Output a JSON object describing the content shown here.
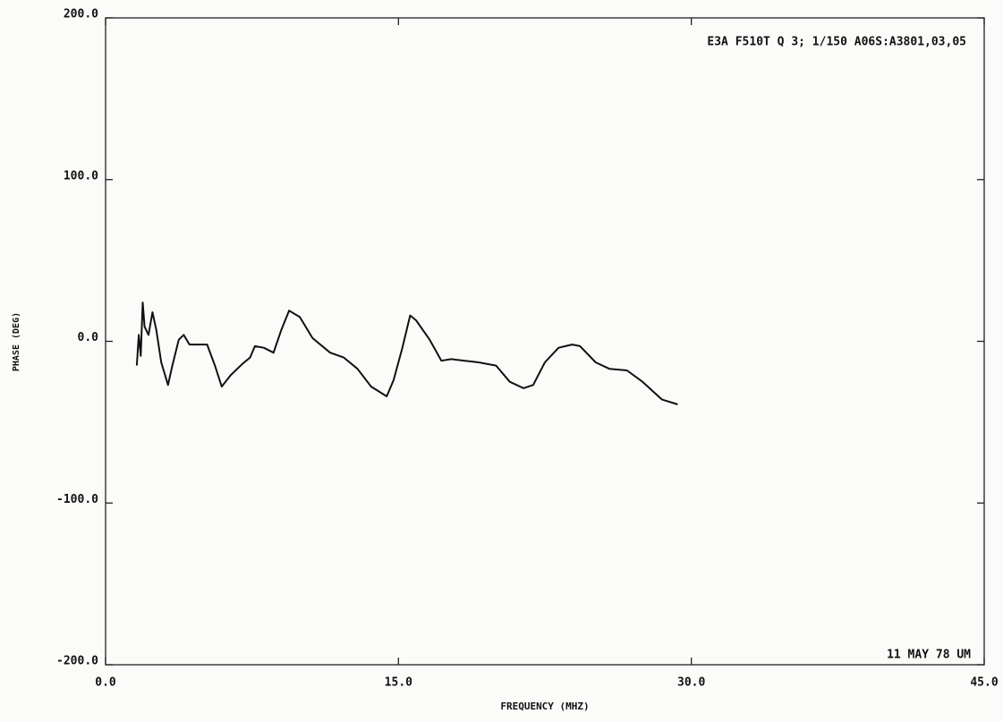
{
  "chart_data": {
    "type": "line",
    "title": "E3A F510T Q 3; 1/150 A06S:A3801,03,05",
    "annotation": "11 MAY 78 UM",
    "xlabel": "FREQUENCY (MHZ)",
    "ylabel": "PHASE (DEG)",
    "color": "#111111",
    "x": [
      1.6,
      1.7,
      1.8,
      1.9,
      2.0,
      2.2,
      2.4,
      2.6,
      2.85,
      3.2,
      3.4,
      3.75,
      4.0,
      4.3,
      4.75,
      5.2,
      5.6,
      5.95,
      6.4,
      7.0,
      7.4,
      7.65,
      8.1,
      8.6,
      9.0,
      9.4,
      9.95,
      10.6,
      11.5,
      12.2,
      12.9,
      13.6,
      14.4,
      14.75,
      15.2,
      15.6,
      15.9,
      16.6,
      17.2,
      17.7,
      18.4,
      19.1,
      20.0,
      20.7,
      21.4,
      21.9,
      22.5,
      23.2,
      23.9,
      24.3,
      25.1,
      25.8,
      26.7,
      27.5,
      28.5,
      29.3
    ],
    "values": [
      -15,
      4,
      -9,
      24,
      9,
      4,
      18,
      7,
      -13,
      -27,
      -16,
      1,
      4,
      -2,
      -2,
      -2,
      -15,
      -28,
      -21,
      -14,
      -10,
      -3,
      -4,
      -7,
      7,
      19,
      15,
      2,
      -7,
      -10,
      -17,
      -28,
      -34,
      -24,
      -4,
      16,
      13,
      1,
      -12,
      -11,
      -12,
      -13,
      -15,
      -25,
      -29,
      -27,
      -13,
      -4,
      -2,
      -3,
      -13,
      -17,
      -18,
      -25,
      -36,
      -39
    ],
    "xlim": [
      0,
      45
    ],
    "xticks": [
      {
        "value": 0,
        "label": "0.0"
      },
      {
        "value": 15,
        "label": "15.0"
      },
      {
        "value": 30,
        "label": "30.0"
      },
      {
        "value": 45,
        "label": "45.0"
      }
    ],
    "ylim": [
      -200,
      200
    ],
    "yticks": [
      {
        "value": -200,
        "label": "-200.0"
      },
      {
        "value": -100,
        "label": "-100.0"
      },
      {
        "value": 0,
        "label": "0.0"
      },
      {
        "value": 100,
        "label": "100.0"
      },
      {
        "value": 200,
        "label": "200.0"
      }
    ]
  }
}
